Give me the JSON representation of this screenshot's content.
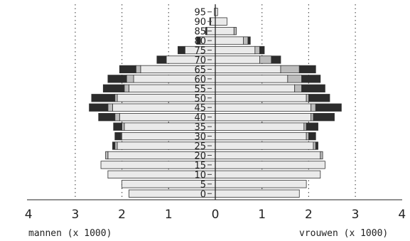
{
  "chart_data": {
    "type": "bar",
    "orientation": "horizontal",
    "layout": "population-pyramid",
    "categories": [
      "0",
      "5",
      "10",
      "15",
      "20",
      "25",
      "30",
      "35",
      "40",
      "45",
      "50",
      "55",
      "60",
      "65",
      "70",
      "75",
      "80",
      "85",
      "90",
      "95"
    ],
    "x_tick_labels": [
      "4",
      "3",
      "2",
      "1",
      "0",
      "1",
      "2",
      "3",
      "4"
    ],
    "y_tick_labels": [
      "0",
      "5",
      "10",
      "15",
      "20",
      "25",
      "30",
      "35",
      "40",
      "45",
      "50",
      "55",
      "60",
      "65",
      "70",
      "75",
      "80",
      "85",
      "90",
      "95"
    ],
    "xlabel_left": "mannen (x 1000)",
    "xlabel_right": "vrouwen (x 1000)",
    "xlim": [
      -4,
      4
    ],
    "grid": "vertical dotted at 1, 2, 3",
    "segment_colors": [
      "#eaeaea",
      "#bdbdbd",
      "#2c2c2c"
    ],
    "series": {
      "mannen": [
        [
          1.85,
          0.0,
          0.0
        ],
        [
          2.0,
          0.0,
          0.0
        ],
        [
          2.3,
          0.0,
          0.0
        ],
        [
          2.45,
          0.0,
          0.0
        ],
        [
          2.3,
          0.05,
          0.0
        ],
        [
          2.1,
          0.05,
          0.05
        ],
        [
          2.0,
          0.02,
          0.13
        ],
        [
          1.95,
          0.05,
          0.18
        ],
        [
          2.05,
          0.1,
          0.35
        ],
        [
          2.2,
          0.1,
          0.4
        ],
        [
          2.1,
          0.05,
          0.5
        ],
        [
          1.85,
          0.1,
          0.45
        ],
        [
          1.75,
          0.15,
          0.4
        ],
        [
          1.6,
          0.1,
          0.35
        ],
        [
          1.05,
          0.0,
          0.2
        ],
        [
          0.65,
          0.0,
          0.15
        ],
        [
          0.32,
          0.0,
          0.08
        ],
        [
          0.18,
          0.0,
          0.03
        ],
        [
          0.1,
          0.0,
          0.02
        ],
        [
          0.02,
          0.0,
          0.0
        ]
      ],
      "vrouwen": [
        [
          1.8,
          0.0,
          0.0
        ],
        [
          1.95,
          0.0,
          0.0
        ],
        [
          2.25,
          0.0,
          0.0
        ],
        [
          2.35,
          0.0,
          0.0
        ],
        [
          2.25,
          0.05,
          0.0
        ],
        [
          2.1,
          0.05,
          0.05
        ],
        [
          1.95,
          0.05,
          0.15
        ],
        [
          1.9,
          0.05,
          0.25
        ],
        [
          2.05,
          0.05,
          0.45
        ],
        [
          2.05,
          0.1,
          0.55
        ],
        [
          1.95,
          0.05,
          0.45
        ],
        [
          1.7,
          0.15,
          0.5
        ],
        [
          1.55,
          0.3,
          0.4
        ],
        [
          1.4,
          0.4,
          0.35
        ],
        [
          0.95,
          0.25,
          0.2
        ],
        [
          0.85,
          0.1,
          0.1
        ],
        [
          0.6,
          0.1,
          0.05
        ],
        [
          0.4,
          0.05,
          0.0
        ],
        [
          0.25,
          0.0,
          0.0
        ],
        [
          0.05,
          0.0,
          0.0
        ]
      ]
    }
  }
}
